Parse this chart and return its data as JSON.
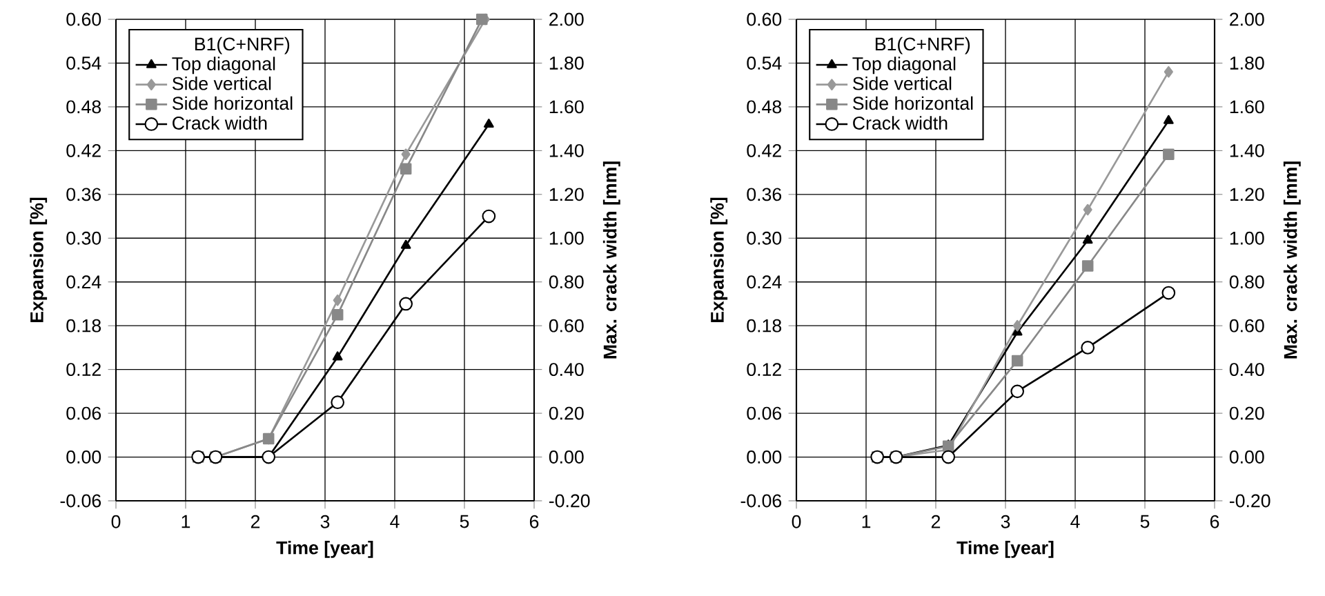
{
  "chart_data": [
    {
      "type": "line",
      "xlabel": "Time [year]",
      "ylabel": "Expansion [%]",
      "y2label": "Max. crack width [mm]",
      "legend_title": "B1(C+NRF)",
      "legend": "top left",
      "grid": true,
      "xlim": [
        0,
        6
      ],
      "xticks": [
        0,
        1,
        2,
        3,
        4,
        5,
        6
      ],
      "ylim": [
        -0.06,
        0.6
      ],
      "yticks": [
        {
          "value": -0.06,
          "label": "-0.06"
        },
        {
          "value": 0,
          "label": "0.00"
        },
        {
          "value": 0.06,
          "label": "0.06"
        },
        {
          "value": 0.12,
          "label": "0.12"
        },
        {
          "value": 0.18,
          "label": "0.18"
        },
        {
          "value": 0.24,
          "label": "0.24"
        },
        {
          "value": 0.3,
          "label": "0.30"
        },
        {
          "value": 0.36,
          "label": "0.36"
        },
        {
          "value": 0.42,
          "label": "0.42"
        },
        {
          "value": 0.48,
          "label": "0.48"
        },
        {
          "value": 0.54,
          "label": "0.54"
        },
        {
          "value": 0.6,
          "label": "0.60"
        }
      ],
      "y2lim": [
        -0.2,
        2.0
      ],
      "y2ticks": [
        {
          "value": -0.2,
          "label": "-0.20"
        },
        {
          "value": 0,
          "label": "0.00"
        },
        {
          "value": 0.2,
          "label": "0.20"
        },
        {
          "value": 0.4,
          "label": "0.40"
        },
        {
          "value": 0.6,
          "label": "0.60"
        },
        {
          "value": 0.8,
          "label": "0.80"
        },
        {
          "value": 1.0,
          "label": "1.00"
        },
        {
          "value": 1.2,
          "label": "1.20"
        },
        {
          "value": 1.4,
          "label": "1.40"
        },
        {
          "value": 1.6,
          "label": "1.60"
        },
        {
          "value": 1.8,
          "label": "1.80"
        },
        {
          "value": 2.0,
          "label": "2.00"
        }
      ],
      "series": [
        {
          "name": "Top diagonal",
          "color": "#000000",
          "marker": "triangle",
          "x": [
            1.18,
            1.43,
            2.19,
            3.18,
            4.16,
            5.35
          ],
          "values": [
            0,
            0,
            0,
            0.137,
            0.29,
            0.456
          ]
        },
        {
          "name": "Side vertical",
          "color": "#999999",
          "marker": "diamond",
          "x": [
            1.18,
            1.43,
            2.19,
            3.18,
            4.16,
            5.3
          ],
          "values": [
            0,
            0,
            0.025,
            0.215,
            0.415,
            0.6
          ]
        },
        {
          "name": "Side horizontal",
          "color": "#888888",
          "marker": "square",
          "x": [
            1.18,
            1.43,
            2.19,
            3.18,
            4.16,
            5.25
          ],
          "values": [
            0,
            0,
            0.025,
            0.195,
            0.395,
            0.6
          ]
        },
        {
          "name": "Crack width",
          "color": "#000000",
          "marker": "circle",
          "axis": "y2",
          "x": [
            1.18,
            1.43,
            2.19,
            3.18,
            4.16,
            5.35
          ],
          "values": [
            0,
            0,
            0,
            0.25,
            0.7,
            1.1
          ]
        }
      ]
    },
    {
      "type": "line",
      "xlabel": "Time [year]",
      "ylabel": "Expansion [%]",
      "y2label": "Max. crack width [mm]",
      "legend_title": "B1(C+NRF)",
      "legend": "top left",
      "grid": true,
      "xlim": [
        0,
        6
      ],
      "xticks": [
        0,
        1,
        2,
        3,
        4,
        5,
        6
      ],
      "ylim": [
        -0.06,
        0.6
      ],
      "yticks": [
        {
          "value": -0.06,
          "label": "-0.06"
        },
        {
          "value": 0,
          "label": "0.00"
        },
        {
          "value": 0.06,
          "label": "0.06"
        },
        {
          "value": 0.12,
          "label": "0.12"
        },
        {
          "value": 0.18,
          "label": "0.18"
        },
        {
          "value": 0.24,
          "label": "0.24"
        },
        {
          "value": 0.3,
          "label": "0.30"
        },
        {
          "value": 0.36,
          "label": "0.36"
        },
        {
          "value": 0.42,
          "label": "0.42"
        },
        {
          "value": 0.48,
          "label": "0.48"
        },
        {
          "value": 0.54,
          "label": "0.54"
        },
        {
          "value": 0.6,
          "label": "0.60"
        }
      ],
      "y2lim": [
        -0.2,
        2.0
      ],
      "y2ticks": [
        {
          "value": -0.2,
          "label": "-0.20"
        },
        {
          "value": 0,
          "label": "0.00"
        },
        {
          "value": 0.2,
          "label": "0.20"
        },
        {
          "value": 0.4,
          "label": "0.40"
        },
        {
          "value": 0.6,
          "label": "0.60"
        },
        {
          "value": 0.8,
          "label": "0.80"
        },
        {
          "value": 1.0,
          "label": "1.00"
        },
        {
          "value": 1.2,
          "label": "1.20"
        },
        {
          "value": 1.4,
          "label": "1.40"
        },
        {
          "value": 1.6,
          "label": "1.60"
        },
        {
          "value": 1.8,
          "label": "1.80"
        },
        {
          "value": 2.0,
          "label": "2.00"
        }
      ],
      "series": [
        {
          "name": "Top diagonal",
          "color": "#000000",
          "marker": "triangle",
          "x": [
            1.16,
            1.43,
            2.18,
            3.17,
            4.18,
            5.34
          ],
          "values": [
            0,
            0,
            0.016,
            0.171,
            0.297,
            0.461
          ]
        },
        {
          "name": "Side vertical",
          "color": "#999999",
          "marker": "diamond",
          "x": [
            1.16,
            1.43,
            2.18,
            3.17,
            4.18,
            5.34
          ],
          "values": [
            0,
            0,
            0.01,
            0.18,
            0.339,
            0.528
          ]
        },
        {
          "name": "Side horizontal",
          "color": "#888888",
          "marker": "square",
          "x": [
            1.16,
            1.43,
            2.18,
            3.17,
            4.18,
            5.34
          ],
          "values": [
            0,
            0,
            0.015,
            0.132,
            0.262,
            0.415
          ]
        },
        {
          "name": "Crack width",
          "color": "#000000",
          "marker": "circle",
          "axis": "y2",
          "x": [
            1.16,
            1.43,
            2.18,
            3.17,
            4.18,
            5.34
          ],
          "values": [
            0,
            0,
            0,
            0.3,
            0.5,
            0.75
          ]
        }
      ]
    }
  ]
}
